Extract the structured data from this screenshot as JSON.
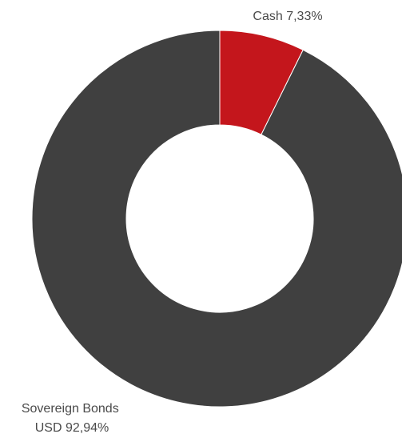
{
  "chart_data": {
    "type": "pie",
    "donut": true,
    "slices": [
      {
        "label": "Cash 7,33%",
        "label_lines": [
          "Cash 7,33%"
        ],
        "value": 7.33,
        "color": "#C4161C"
      },
      {
        "label": "Sovereign Bonds USD 92,94%",
        "label_lines": [
          "Sovereign Bonds",
          "USD 92,94%"
        ],
        "value": 92.94,
        "color": "#404040"
      }
    ],
    "start_angle_deg": 0,
    "direction": "clockwise",
    "legend": "none"
  }
}
